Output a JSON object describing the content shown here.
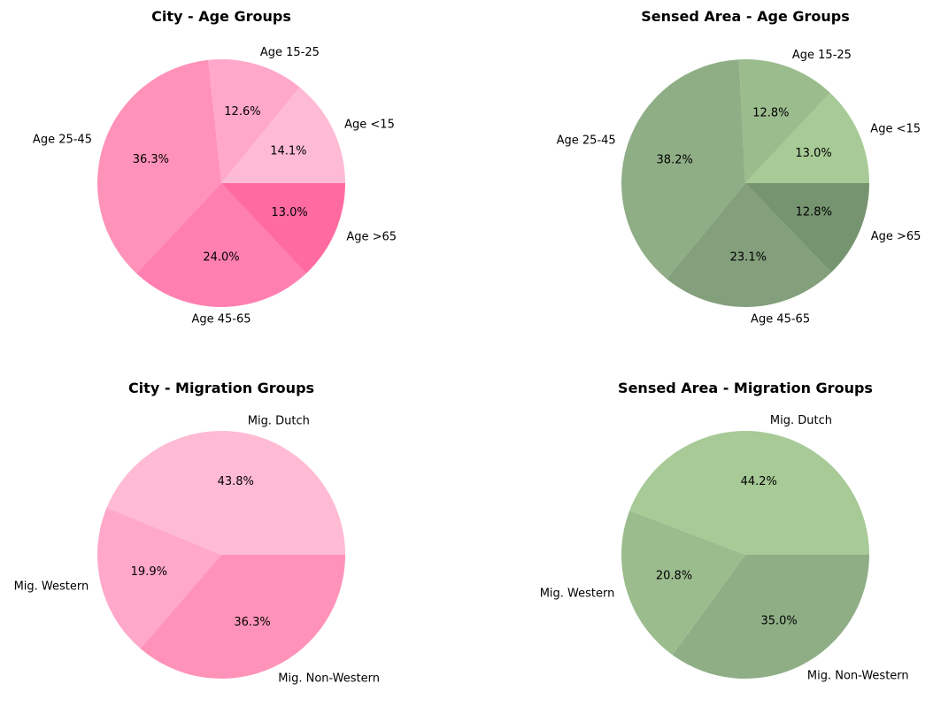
{
  "chart_data": [
    {
      "type": "pie",
      "title": "City - Age Groups",
      "start_angle_deg": 0,
      "direction": "counterclockwise",
      "categories": [
        "Age <15",
        "Age 15-25",
        "Age 25-45",
        "Age 45-65",
        "Age >65"
      ],
      "values": [
        14.1,
        12.6,
        36.3,
        24.0,
        13.0
      ],
      "percent_labels": [
        "14.1%",
        "12.6%",
        "36.3%",
        "24.0%",
        "13.0%"
      ],
      "colors": [
        "#ffbbd4",
        "#ffa8c9",
        "#ff92b8",
        "#ff7fb0",
        "#ff6a9f"
      ]
    },
    {
      "type": "pie",
      "title": "Sensed Area - Age Groups",
      "start_angle_deg": 0,
      "direction": "counterclockwise",
      "categories": [
        "Age <15",
        "Age 15-25",
        "Age 25-45",
        "Age 45-65",
        "Age >65"
      ],
      "values": [
        13.0,
        12.8,
        38.2,
        23.1,
        12.8
      ],
      "percent_labels": [
        "13.0%",
        "12.8%",
        "38.2%",
        "23.1%",
        "12.8%"
      ],
      "colors": [
        "#a7ca96",
        "#9bbc8d",
        "#8fae86",
        "#839f7c",
        "#76946f"
      ]
    },
    {
      "type": "pie",
      "title": "City - Migration Groups",
      "start_angle_deg": 0,
      "direction": "counterclockwise",
      "categories": [
        "Mig. Dutch",
        "Mig. Western",
        "Mig. Non-Western"
      ],
      "values": [
        43.8,
        19.9,
        36.3
      ],
      "percent_labels": [
        "43.8%",
        "19.9%",
        "36.3%"
      ],
      "colors": [
        "#ffbbd4",
        "#ffa8c9",
        "#ff92b8"
      ]
    },
    {
      "type": "pie",
      "title": "Sensed Area - Migration Groups",
      "start_angle_deg": 0,
      "direction": "counterclockwise",
      "categories": [
        "Mig. Dutch",
        "Mig. Western",
        "Mig. Non-Western"
      ],
      "values": [
        44.2,
        20.8,
        35.0
      ],
      "percent_labels": [
        "44.2%",
        "20.8%",
        "35.0%"
      ],
      "colors": [
        "#a7ca96",
        "#9bbc8d",
        "#8fae86"
      ]
    }
  ]
}
